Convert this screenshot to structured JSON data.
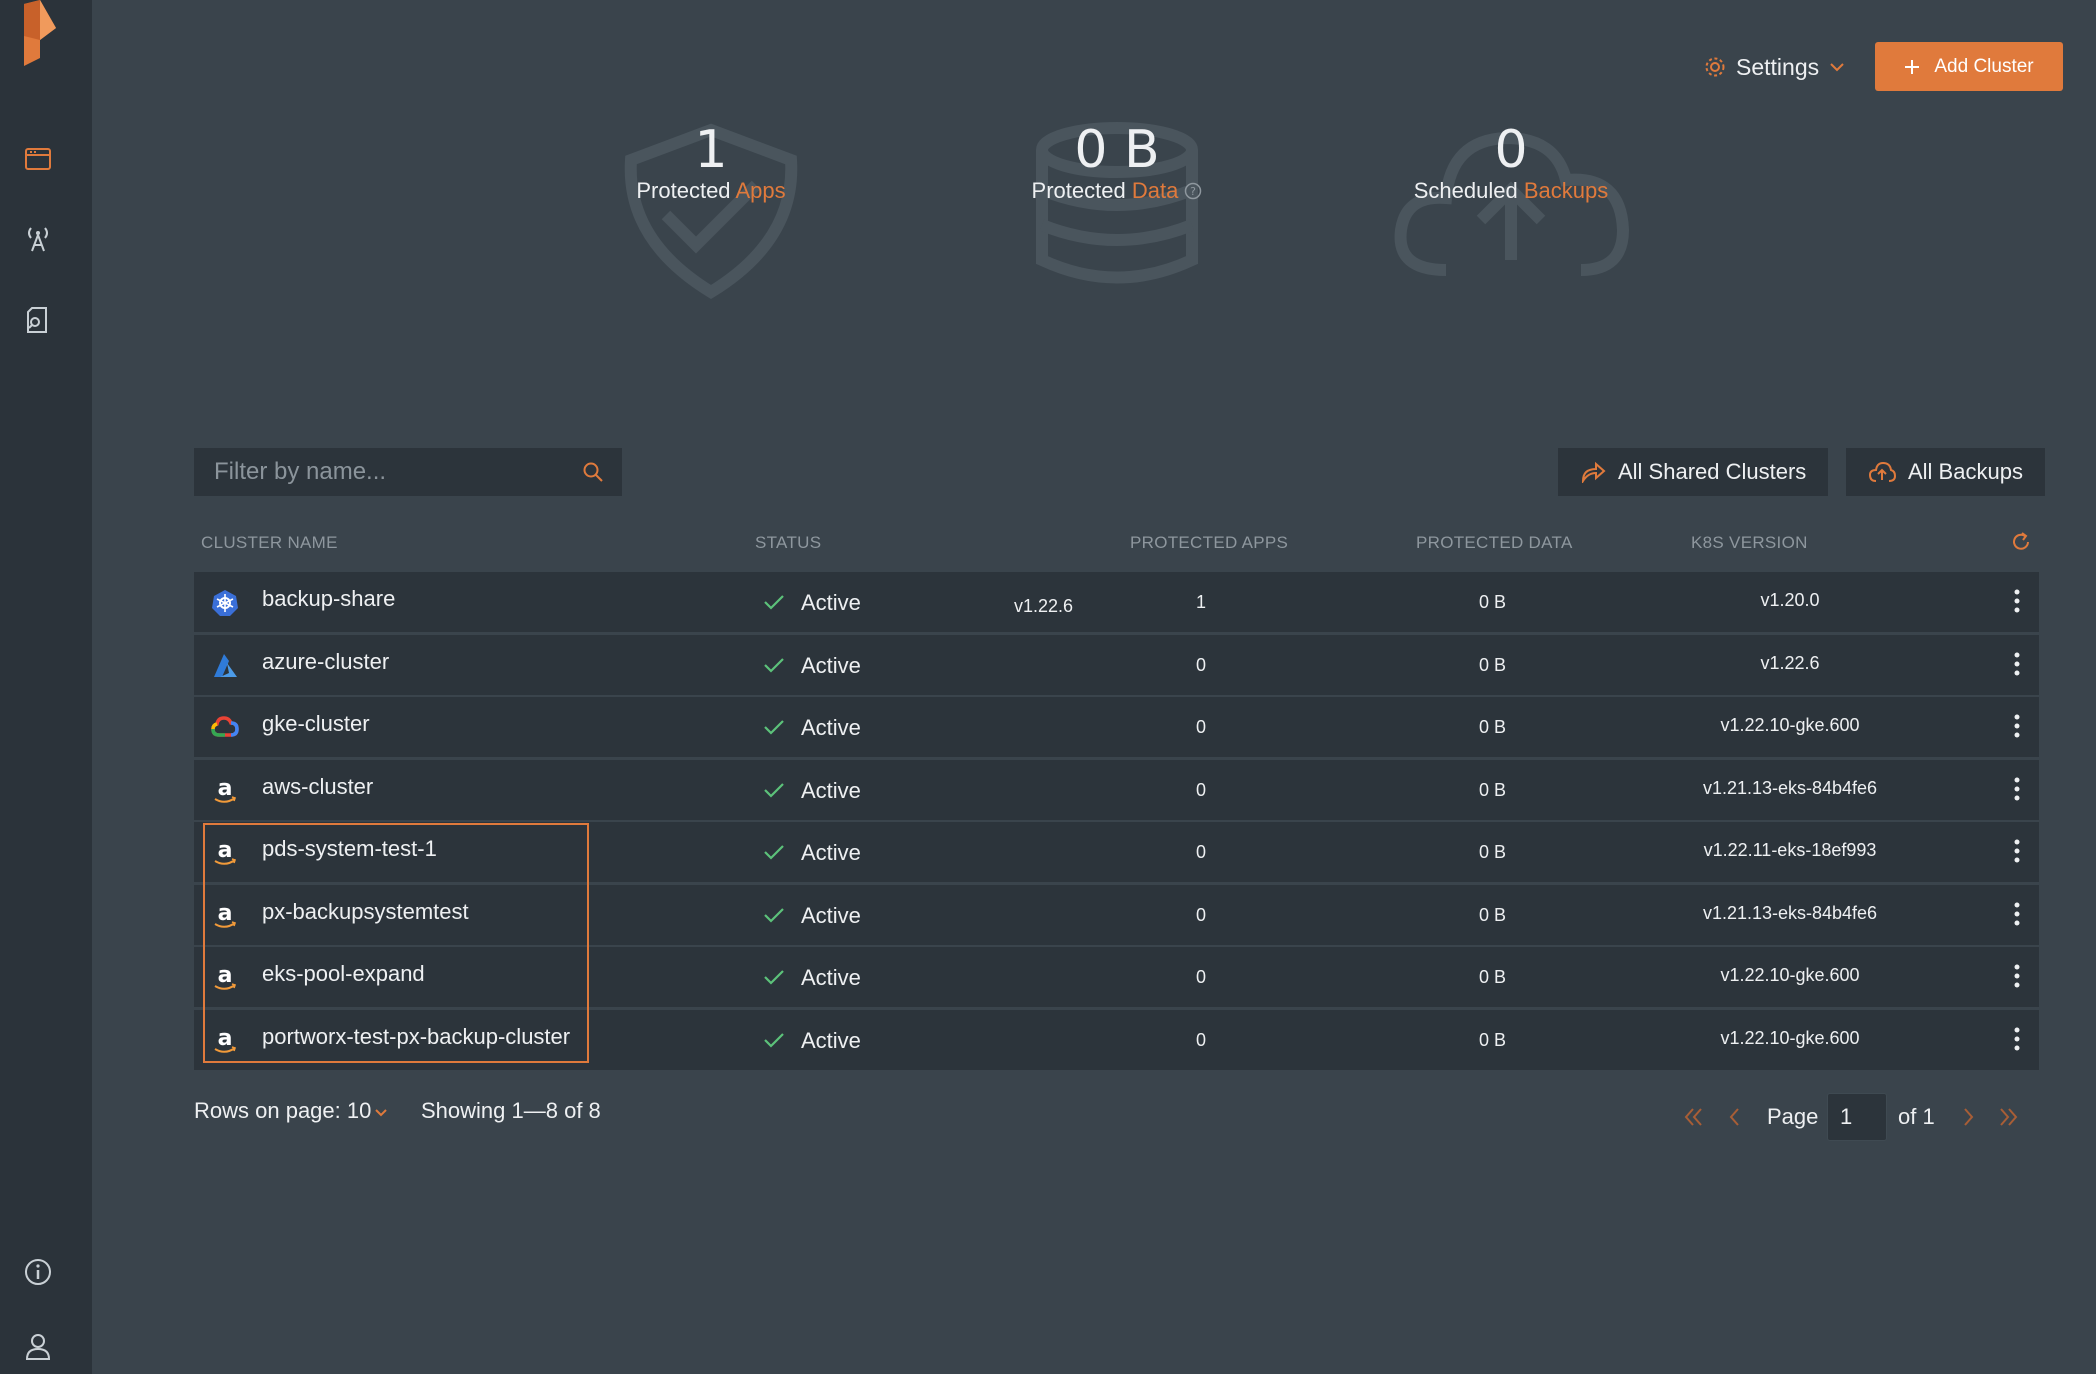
{
  "header": {
    "settings_label": "Settings",
    "add_cluster_label": "Add Cluster"
  },
  "stats": [
    {
      "value": "1",
      "label_prefix": "Protected",
      "label_accent": "Apps"
    },
    {
      "value": "0 B",
      "label_prefix": "Protected",
      "label_accent": "Data"
    },
    {
      "value": "0",
      "label_prefix": "Scheduled",
      "label_accent": "Backups"
    }
  ],
  "filter": {
    "placeholder": "Filter by name..."
  },
  "buttons": {
    "shared_clusters": "All Shared Clusters",
    "all_backups": "All Backups"
  },
  "table": {
    "headers": {
      "name": "CLUSTER NAME",
      "status": "STATUS",
      "apps": "PROTECTED APPS",
      "data": "PROTECTED DATA",
      "k8s": "K8S VERSION"
    },
    "rows": [
      {
        "name": "backup-share",
        "provider": "kubernetes",
        "status": "Active",
        "extra": "v1.22.6",
        "apps": "1",
        "data": "0 B",
        "k8s": "v1.20.0"
      },
      {
        "name": "azure-cluster",
        "provider": "azure",
        "status": "Active",
        "extra": "",
        "apps": "0",
        "data": "0 B",
        "k8s": "v1.22.6"
      },
      {
        "name": "gke-cluster",
        "provider": "gcp",
        "status": "Active",
        "extra": "",
        "apps": "0",
        "data": "0 B",
        "k8s": "v1.22.10-gke.600"
      },
      {
        "name": "aws-cluster",
        "provider": "aws",
        "status": "Active",
        "extra": "",
        "apps": "0",
        "data": "0 B",
        "k8s": "v1.21.13-eks-84b4fe6"
      },
      {
        "name": "pds-system-test-1",
        "provider": "aws",
        "status": "Active",
        "extra": "",
        "apps": "0",
        "data": "0 B",
        "k8s": "v1.22.11-eks-18ef993"
      },
      {
        "name": "px-backupsystemtest",
        "provider": "aws",
        "status": "Active",
        "extra": "",
        "apps": "0",
        "data": "0 B",
        "k8s": "v1.21.13-eks-84b4fe6"
      },
      {
        "name": "eks-pool-expand",
        "provider": "aws",
        "status": "Active",
        "extra": "",
        "apps": "0",
        "data": "0 B",
        "k8s": "v1.22.10-gke.600"
      },
      {
        "name": "portworx-test-px-backup-cluster",
        "provider": "aws",
        "status": "Active",
        "extra": "",
        "apps": "0",
        "data": "0 B",
        "k8s": "v1.22.10-gke.600"
      }
    ]
  },
  "footer": {
    "rows_label": "Rows on page: 10",
    "showing": "Showing 1—8 of 8",
    "page_label": "Page",
    "page_value": "1",
    "of_label": "of 1"
  },
  "colors": {
    "accent": "#e07a3c",
    "background": "#3a444c",
    "sidebar": "#2b333a",
    "row": "#2c343b",
    "success": "#5cc27a"
  }
}
